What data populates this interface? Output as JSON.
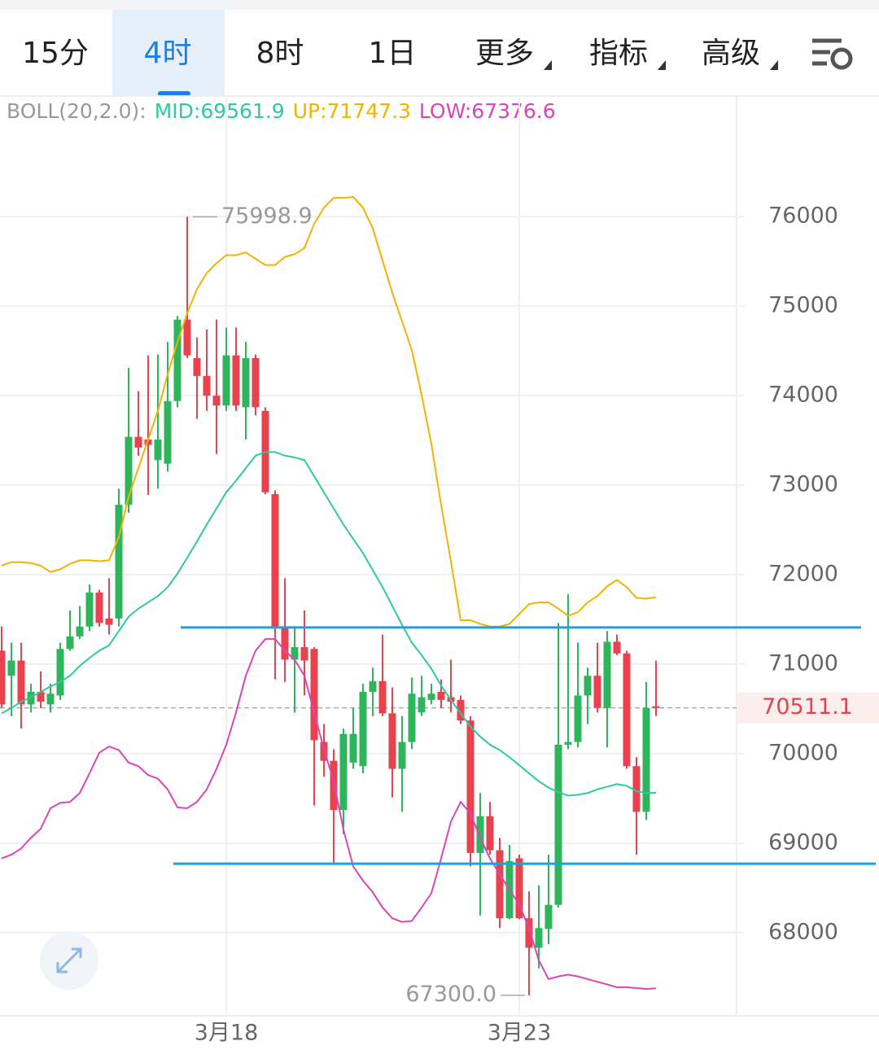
{
  "tabs": {
    "items": [
      "15分",
      "4时",
      "8时",
      "1日",
      "更多",
      "指标",
      "高级"
    ],
    "selected": 1
  },
  "chart_data": {
    "type": "candlestick",
    "indicator": "BOLL(20,2.0):",
    "categories": [
      null,
      null,
      null,
      null,
      null,
      null,
      null,
      null,
      null,
      null,
      null,
      null,
      null,
      null,
      null,
      null,
      null,
      null,
      null,
      null,
      null,
      null,
      null,
      "3月18",
      null,
      null,
      null,
      null,
      null,
      null,
      null,
      null,
      null,
      null,
      null,
      null,
      null,
      null,
      null,
      null,
      null,
      null,
      null,
      null,
      null,
      null,
      null,
      null,
      null,
      null,
      null,
      null,
      null,
      "3月23",
      null,
      null,
      null,
      null,
      null,
      null,
      null,
      null,
      null,
      null,
      null,
      null,
      null,
      null
    ],
    "open": [
      71150,
      70870,
      71040,
      70550,
      70690,
      70550,
      70650,
      71170,
      71310,
      71420,
      71800,
      71510,
      71510,
      72780,
      73540,
      73510,
      73280,
      73240,
      73940,
      74850,
      74420,
      74220,
      74000,
      73890,
      74450,
      73870,
      74420,
      73830,
      72900,
      71420,
      71050,
      71190,
      71170,
      70130,
      69920,
      69370,
      69900,
      69860,
      70690,
      70810,
      70450,
      69830,
      70130,
      70460,
      70600,
      70690,
      70630,
      70600,
      70370,
      68890,
      69300,
      68920,
      68160,
      68830,
      68160,
      67830,
      68040,
      68310,
      70100,
      70130,
      70650,
      70870,
      70510,
      71250,
      71120,
      69860,
      69350,
      70530
    ],
    "high": [
      71420,
      71240,
      71240,
      70780,
      70920,
      70780,
      71240,
      71600,
      71650,
      71890,
      71830,
      71960,
      72960,
      74310,
      74050,
      74450,
      74460,
      74600,
      74890,
      75998.9,
      74650,
      74740,
      74850,
      74760,
      74760,
      74600,
      74460,
      73870,
      72940,
      71960,
      71420,
      71600,
      71190,
      70330,
      70050,
      70280,
      70510,
      70780,
      70960,
      71330,
      70740,
      70420,
      70850,
      70870,
      70780,
      70830,
      71050,
      70650,
      70420,
      69560,
      69460,
      69060,
      68980,
      68870,
      68460,
      68530,
      68870,
      71460,
      71780,
      71240,
      70960,
      71240,
      71370,
      71330,
      71150,
      69960,
      70800,
      71040
    ],
    "low": [
      70510,
      70420,
      70280,
      70460,
      70510,
      70460,
      70600,
      71150,
      71280,
      71370,
      71420,
      71330,
      71420,
      72690,
      73330,
      72890,
      72960,
      73150,
      73870,
      74420,
      73740,
      73830,
      73350,
      73830,
      73830,
      73510,
      73780,
      72900,
      70830,
      70800,
      70460,
      70650,
      69420,
      69740,
      68780,
      69100,
      69830,
      69780,
      70420,
      70420,
      69510,
      69350,
      70050,
      70420,
      70550,
      70510,
      70460,
      70330,
      68740,
      68190,
      68870,
      68050,
      68150,
      68150,
      67300,
      67600,
      67870,
      68280,
      70050,
      70070,
      70330,
      70460,
      70070,
      71100,
      69830,
      68870,
      69260,
      70420
    ],
    "close": [
      70550,
      71040,
      70550,
      70690,
      70580,
      70670,
      71170,
      71310,
      71420,
      71800,
      71460,
      71440,
      72780,
      73540,
      73420,
      73450,
      73510,
      73940,
      74850,
      74450,
      74220,
      74000,
      73890,
      74450,
      73890,
      74420,
      73870,
      72920,
      71420,
      71050,
      71190,
      71040,
      70150,
      69920,
      69370,
      70220,
      70220,
      70690,
      70810,
      70450,
      69830,
      70130,
      70670,
      70630,
      70670,
      70600,
      70580,
      70370,
      68890,
      69300,
      68920,
      68160,
      68800,
      68160,
      67830,
      68050,
      68310,
      70100,
      70130,
      70650,
      70870,
      70510,
      71250,
      71120,
      69860,
      69350,
      70510,
      70511.1
    ],
    "up_color": "#2fb55c",
    "down_color": "#e8424f",
    "series": [
      {
        "name": "MID:69561.9",
        "color": "#2fc9a0",
        "values": [
          70450,
          70510,
          70580,
          70630,
          70690,
          70750,
          70800,
          70870,
          70980,
          71070,
          71150,
          71210,
          71370,
          71530,
          71620,
          71690,
          71760,
          71860,
          72010,
          72190,
          72370,
          72560,
          72740,
          72920,
          73050,
          73190,
          73330,
          73370,
          73370,
          73330,
          73310,
          73280,
          73100,
          72920,
          72740,
          72560,
          72400,
          72240,
          72050,
          71860,
          71650,
          71440,
          71240,
          71100,
          70950,
          70760,
          70600,
          70450,
          70300,
          70190,
          70100,
          70040,
          69960,
          69870,
          69780,
          69690,
          69620,
          69570,
          69530,
          69540,
          69560,
          69600,
          69630,
          69660,
          69640,
          69580,
          69560,
          69561.9
        ]
      },
      {
        "name": "UP:71747.3",
        "color": "#f0b400",
        "values": [
          72100,
          72140,
          72140,
          72130,
          72100,
          72030,
          72060,
          72120,
          72160,
          72160,
          72150,
          72160,
          72420,
          72870,
          73190,
          73510,
          73830,
          74240,
          74600,
          74920,
          75190,
          75370,
          75480,
          75570,
          75570,
          75600,
          75530,
          75460,
          75460,
          75550,
          75580,
          75650,
          75920,
          76100,
          76210,
          76210,
          76220,
          76100,
          75870,
          75510,
          75150,
          74830,
          74510,
          74010,
          73460,
          72780,
          72150,
          71490,
          71490,
          71450,
          71420,
          71420,
          71450,
          71560,
          71670,
          71690,
          71690,
          71620,
          71540,
          71580,
          71690,
          71760,
          71870,
          71940,
          71860,
          71740,
          71730,
          71747.3
        ]
      },
      {
        "name": "LOW:67376.6",
        "color": "#d946b8",
        "values": [
          68830,
          68870,
          68940,
          69060,
          69160,
          69390,
          69450,
          69460,
          69560,
          69780,
          70010,
          70080,
          70040,
          69900,
          69860,
          69760,
          69720,
          69600,
          69400,
          69390,
          69460,
          69600,
          69830,
          70100,
          70460,
          70870,
          71150,
          71280,
          71280,
          71150,
          71050,
          70870,
          70460,
          70050,
          69690,
          69150,
          68740,
          68580,
          68450,
          68280,
          68160,
          68120,
          68130,
          68280,
          68440,
          68830,
          69240,
          69460,
          69330,
          69060,
          68830,
          68650,
          68480,
          68310,
          68050,
          67690,
          67480,
          67510,
          67530,
          67510,
          67480,
          67450,
          67420,
          67390,
          67390,
          67380,
          67370,
          67376.6
        ]
      }
    ],
    "hlines": [
      71410,
      68770
    ],
    "hline_color": "#1aa3dc",
    "last_price": 70511.1,
    "annotations": [
      {
        "value": 75998.9,
        "label": "75998.9"
      },
      {
        "value": 67300,
        "label": "67300.0"
      }
    ],
    "ylim": [
      67070,
      77330
    ],
    "yticks": [
      68000,
      69000,
      70000,
      71000,
      72000,
      73000,
      74000,
      75000,
      76000
    ],
    "grid": true
  }
}
